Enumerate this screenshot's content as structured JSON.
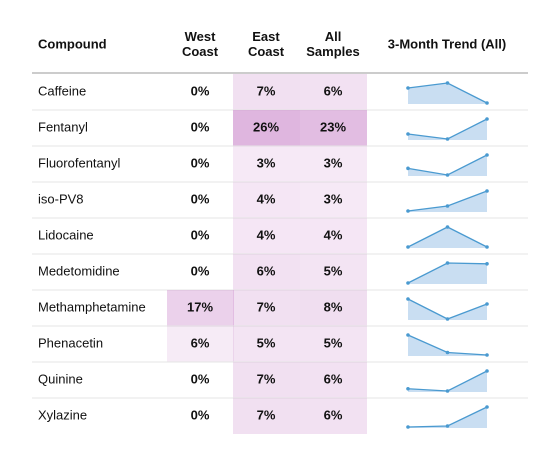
{
  "table": {
    "header": [
      [
        "Compound"
      ],
      [
        "West",
        "Coast"
      ],
      [
        "East",
        "Coast"
      ],
      [
        "All",
        "Samples"
      ],
      [
        "3-Month Trend (All)"
      ]
    ],
    "rows": [
      {
        "compound": "Caffeine",
        "west": "0%",
        "east": "7%",
        "all": "6%",
        "trend": [
          8,
          9,
          5
        ]
      },
      {
        "compound": "Fentanyl",
        "west": "0%",
        "east": "26%",
        "all": "23%",
        "trend": [
          20,
          18,
          26
        ]
      },
      {
        "compound": "Fluorofentanyl",
        "west": "0%",
        "east": "3%",
        "all": "3%",
        "trend": [
          2.5,
          2,
          3.5
        ]
      },
      {
        "compound": "iso-PV8",
        "west": "0%",
        "east": "4%",
        "all": "3%",
        "trend": [
          1,
          2,
          5
        ]
      },
      {
        "compound": "Lidocaine",
        "west": "0%",
        "east": "4%",
        "all": "4%",
        "trend": [
          3,
          6,
          3
        ]
      },
      {
        "compound": "Medetomidine",
        "west": "0%",
        "east": "6%",
        "all": "5%",
        "trend": [
          2,
          7,
          6.8
        ]
      },
      {
        "compound": "Methamphetamine",
        "west": "17%",
        "east": "7%",
        "all": "8%",
        "trend": [
          10,
          6,
          9
        ]
      },
      {
        "compound": "Phenacetin",
        "west": "6%",
        "east": "5%",
        "all": "5%",
        "trend": [
          8,
          4.5,
          4
        ]
      },
      {
        "compound": "Quinine",
        "west": "0%",
        "east": "7%",
        "all": "6%",
        "trend": [
          5,
          4.5,
          9
        ]
      },
      {
        "compound": "Xylazine",
        "west": "0%",
        "east": "7%",
        "all": "6%",
        "trend": [
          5,
          5.2,
          9
        ]
      }
    ]
  }
}
